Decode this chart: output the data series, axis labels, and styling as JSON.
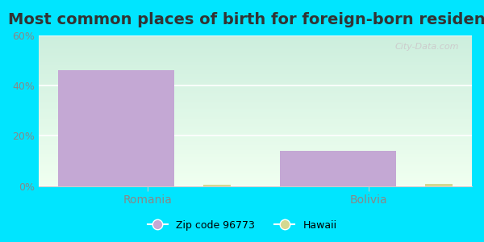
{
  "title": "Most common places of birth for foreign-born residents",
  "categories": [
    "Romania",
    "Bolivia"
  ],
  "zip_values": [
    46,
    14
  ],
  "hawaii_values": [
    0.5,
    0.8
  ],
  "zip_color": "#c4a8d4",
  "hawaii_color": "#d4d890",
  "bar_width": 0.35,
  "ylim": [
    0,
    60
  ],
  "yticks": [
    0,
    20,
    40,
    60
  ],
  "ytick_labels": [
    "0%",
    "20%",
    "40%",
    "60%"
  ],
  "bg_outer": "#00e5ff",
  "legend_label_zip": "Zip code 96773",
  "legend_label_hawaii": "Hawaii",
  "title_fontsize": 14,
  "tick_label_color": "#888888",
  "watermark": "City-Data.com"
}
